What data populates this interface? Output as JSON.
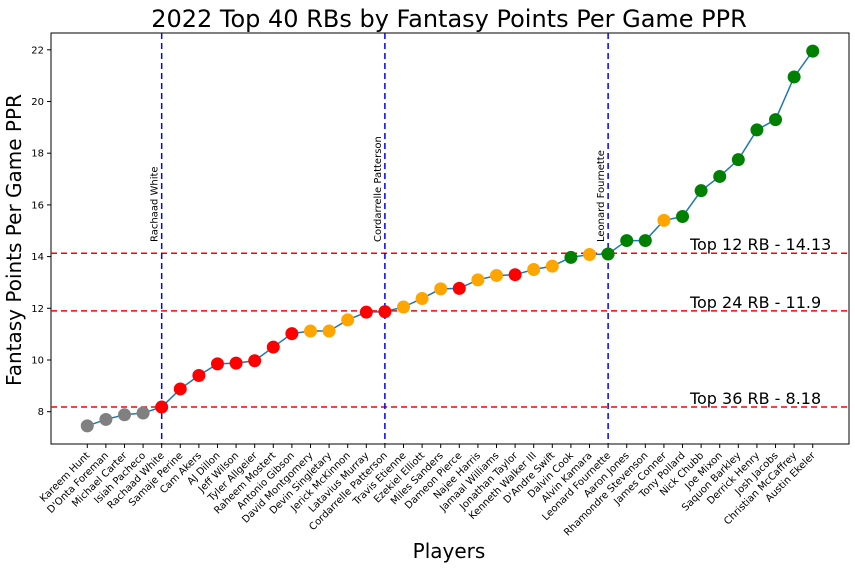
{
  "chart_data": {
    "type": "line",
    "title": "2022 Top 40 RBs by Fantasy Points Per Game PPR",
    "xlabel": "Players",
    "ylabel": "Fantasy Points Per Game PPR",
    "ylim": [
      6.75,
      22.65
    ],
    "yticks": [
      8,
      10,
      12,
      14,
      16,
      18,
      20,
      22
    ],
    "grid": false,
    "line_color": "#1f77b4",
    "categories": [
      "Kareem Hunt",
      "D'Onta Foreman",
      "Michael Carter",
      "Isiah Pacheco",
      "Rachaad White",
      "Samaje Perine",
      "Cam Akers",
      "AJ Dillon",
      "Jeff Wilson",
      "Tyler Allgeier",
      "Raheem Mostert",
      "Antonio Gibson",
      "David Montgomery",
      "Devin Singletary",
      "Jerick McKinnon",
      "Latavius Murray",
      "Cordarrelle Patterson",
      "Travis Etienne",
      "Ezekiel Elliott",
      "Miles Sanders",
      "Dameon Pierce",
      "Najee Harris",
      "Jamaal Williams",
      "Jonathan Taylor",
      "Kenneth Walker III",
      "D'Andre Swift",
      "Dalvin Cook",
      "Alvin Kamara",
      "Leonard Fournette",
      "Aaron Jones",
      "Rhamondre Stevenson",
      "James Conner",
      "Tony Pollard",
      "Nick Chubb",
      "Joe Mixon",
      "Saquon Barkley",
      "Derrick Henry",
      "Josh Jacobs",
      "Christian McCaffrey",
      "Austin Ekeler"
    ],
    "values": [
      7.45,
      7.7,
      7.88,
      7.95,
      8.18,
      8.88,
      9.4,
      9.85,
      9.88,
      9.97,
      10.5,
      11.02,
      11.12,
      11.12,
      11.55,
      11.85,
      11.87,
      12.05,
      12.38,
      12.75,
      12.77,
      13.1,
      13.27,
      13.3,
      13.5,
      13.63,
      13.97,
      14.08,
      14.1,
      14.62,
      14.62,
      15.4,
      15.55,
      16.55,
      17.1,
      17.75,
      18.9,
      19.3,
      20.95,
      21.95
    ],
    "point_colors": [
      "#808080",
      "#808080",
      "#808080",
      "#808080",
      "#ff0000",
      "#ff0000",
      "#ff0000",
      "#ff0000",
      "#ff0000",
      "#ff0000",
      "#ff0000",
      "#ff0000",
      "#ffa500",
      "#ffa500",
      "#ffa500",
      "#ff0000",
      "#ff0000",
      "#ffa500",
      "#ffa500",
      "#ffa500",
      "#ff0000",
      "#ffa500",
      "#ffa500",
      "#ff0000",
      "#ffa500",
      "#ffa500",
      "#008000",
      "#ffa500",
      "#008000",
      "#008000",
      "#008000",
      "#ffa500",
      "#008000",
      "#008000",
      "#008000",
      "#008000",
      "#008000",
      "#008000",
      "#008000",
      "#008000"
    ],
    "vertical_markers": [
      {
        "index": 4,
        "label": "Rachaad White",
        "color": "#0000ff"
      },
      {
        "index": 16,
        "label": "Cordarrelle Patterson",
        "color": "#0000ff"
      },
      {
        "index": 28,
        "label": "Leonard Fournette",
        "color": "#0000ff"
      }
    ],
    "horizontal_markers": [
      {
        "value": 14.13,
        "label": "Top 12 RB - 14.13",
        "color": "#ff0000"
      },
      {
        "value": 11.9,
        "label": "Top 24 RB - 11.9",
        "color": "#ff0000"
      },
      {
        "value": 8.18,
        "label": "Top 36 RB - 8.18",
        "color": "#ff0000"
      }
    ]
  }
}
